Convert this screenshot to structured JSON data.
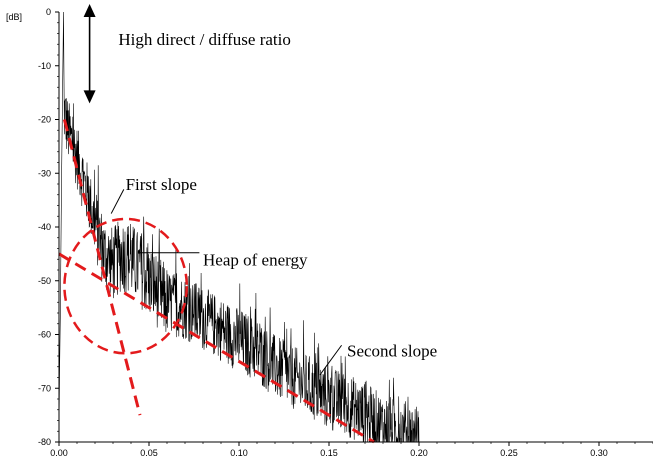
{
  "chart_data": {
    "type": "line",
    "title": "",
    "xlabel": "",
    "ylabel": "[dB]",
    "xlim": [
      0.0,
      0.33
    ],
    "ylim": [
      -80,
      0
    ],
    "x_ticks": [
      "0.00",
      "0.05",
      "0.10",
      "0.15",
      "0.20",
      "0.25",
      "0.30"
    ],
    "y_ticks": [
      "0",
      "-10",
      "-20",
      "-30",
      "-40",
      "-50",
      "-60",
      "-70",
      "-80"
    ],
    "grid": false,
    "legend": "none",
    "series": [
      {
        "kind": "noisy-decay",
        "color": "#000000",
        "x": [
          0.0,
          0.005,
          0.01,
          0.015,
          0.02,
          0.025,
          0.03,
          0.035,
          0.04,
          0.045,
          0.05,
          0.06,
          0.07,
          0.08,
          0.09,
          0.1,
          0.11,
          0.12,
          0.13,
          0.14,
          0.15,
          0.16,
          0.17,
          0.18,
          0.19,
          0.2
        ],
        "y": [
          -14,
          -22,
          -27,
          -33,
          -39,
          -45,
          -47,
          -45,
          -46,
          -48,
          -50,
          -54,
          -55,
          -57,
          -59,
          -61,
          -63,
          -66,
          -68,
          -70,
          -72,
          -73,
          -75,
          -77,
          -78,
          -79
        ]
      }
    ],
    "overlays": [
      {
        "name": "first-slope-fit",
        "color": "#e31a1c",
        "style": "dashed",
        "x": [
          0.003,
          0.045
        ],
        "y": [
          -20,
          -75
        ]
      },
      {
        "name": "second-slope-fit",
        "color": "#e31a1c",
        "style": "dashed",
        "x": [
          0.0,
          0.175
        ],
        "y": [
          -45,
          -80
        ]
      },
      {
        "name": "energy-heap-ellipse",
        "color": "#e31a1c",
        "style": "dashed",
        "cx": 0.037,
        "cy": -51,
        "rx": 0.034,
        "ry": 12.5
      },
      {
        "name": "direct-diffuse-arrow",
        "color": "#000000",
        "style": "solid",
        "x": [
          0.017,
          0.017
        ],
        "y": [
          1.5,
          -17
        ]
      }
    ],
    "annotations": [
      {
        "text": "High direct / diffuse ratio",
        "x": 0.033,
        "y": -5
      },
      {
        "text": "First slope",
        "x": 0.037,
        "y": -32
      },
      {
        "text": "Heap of energy",
        "x": 0.08,
        "y": -46
      },
      {
        "text": "Second slope",
        "x": 0.16,
        "y": -63
      }
    ]
  },
  "colors": {
    "noise": "#000000",
    "fit": "#e31a1c",
    "axis": "#000000"
  }
}
